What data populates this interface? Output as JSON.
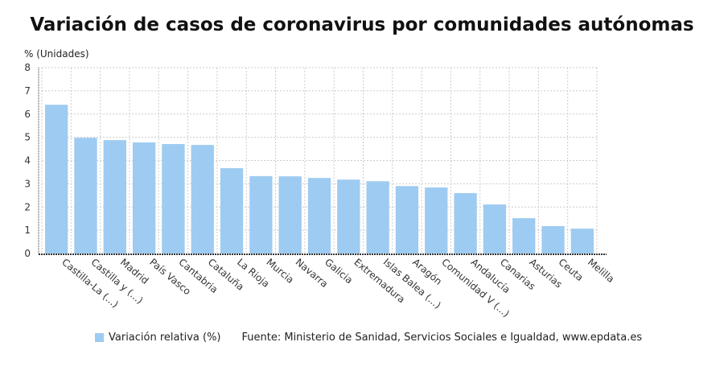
{
  "chart_data": {
    "type": "bar",
    "title": "Variación de casos de coronavirus por comunidades autónomas",
    "ylabel": "% (Unidades)",
    "xlabel": "",
    "ylim": [
      0,
      8
    ],
    "yticks": [
      0,
      1,
      2,
      3,
      4,
      5,
      6,
      7,
      8
    ],
    "grid": true,
    "legend_position": "bottom",
    "categories": [
      "Castilla-La (...)",
      "Castilla y (...)",
      "Madrid",
      "País Vasco",
      "Cantabria",
      "Cataluña",
      "La Rioja",
      "Murcia",
      "Navarra",
      "Galicia",
      "Extremadura",
      "Islas Balea (...)",
      "Aragón",
      "Comunidad V (...)",
      "Andalucía",
      "Canarias",
      "Asturias",
      "Ceuta",
      "Melilla"
    ],
    "series": [
      {
        "name": "Variación relativa (%)",
        "color": "#9ecbf1",
        "values": [
          6.4,
          4.98,
          4.88,
          4.78,
          4.71,
          4.67,
          3.67,
          3.33,
          3.32,
          3.25,
          3.18,
          3.11,
          2.9,
          2.84,
          2.6,
          2.11,
          1.52,
          1.18,
          1.07
        ]
      }
    ],
    "source": "Fuente: Ministerio de Sanidad, Servicios Sociales e Igualdad, www.epdata.es"
  }
}
